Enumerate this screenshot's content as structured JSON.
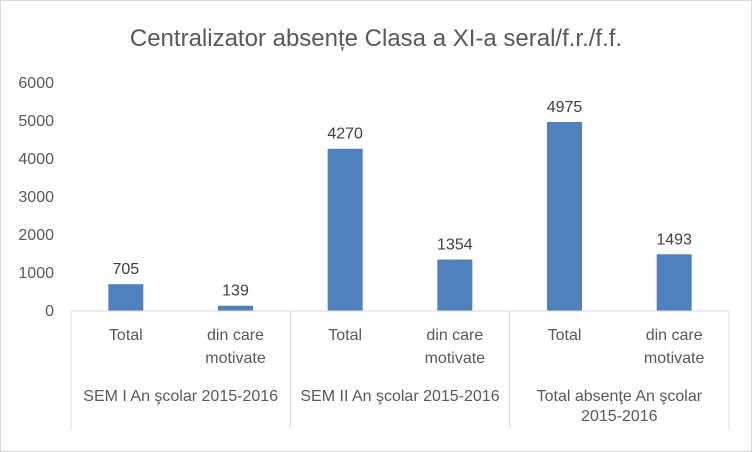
{
  "chart_data": {
    "type": "bar",
    "title": "Centralizator absențe Clasa a XI-a seral/f.r./f.f.",
    "xlabel": "",
    "ylabel": "",
    "ylim": [
      0,
      6000
    ],
    "y_ticks": [
      0,
      1000,
      2000,
      3000,
      4000,
      5000,
      6000
    ],
    "grid": false,
    "legend": "none",
    "groups": [
      {
        "label": [
          "SEM I An şcolar 2015-2016"
        ],
        "categories": [
          [
            "Total"
          ],
          [
            "din care",
            "motivate"
          ]
        ],
        "values": [
          705,
          139
        ]
      },
      {
        "label": [
          "SEM II An şcolar 2015-2016"
        ],
        "categories": [
          [
            "Total"
          ],
          [
            "din care",
            "motivate"
          ]
        ],
        "values": [
          4270,
          1354
        ]
      },
      {
        "label": [
          "Total absenţe An şcolar",
          "2015-2016"
        ],
        "categories": [
          [
            "Total"
          ],
          [
            "din care",
            "motivate"
          ]
        ],
        "values": [
          4975,
          1493
        ]
      }
    ],
    "bar_color": "#4f81bd"
  }
}
